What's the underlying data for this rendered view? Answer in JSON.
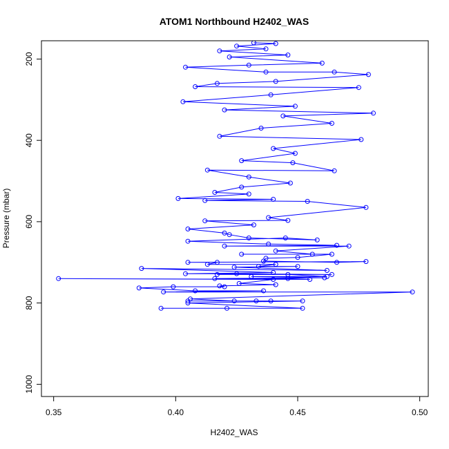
{
  "chart_data": {
    "type": "line",
    "title": "ATOM1 Northbound H2402_WAS",
    "xlabel": "H2402_WAS",
    "ylabel": "Pressure (mbar)",
    "xlim": [
      0.345,
      0.5035
    ],
    "ylim": [
      1030,
      155
    ],
    "y_reversed": true,
    "x_ticks": [
      0.35,
      0.4,
      0.45,
      0.5
    ],
    "x_tick_labels": [
      "0.35",
      "0.40",
      "0.45",
      "0.50"
    ],
    "y_ticks": [
      200,
      400,
      600,
      800,
      1000
    ],
    "y_tick_labels": [
      "200",
      "400",
      "600",
      "800",
      "1000"
    ],
    "grid": false,
    "legend": "none",
    "series_color": "#0000ff",
    "marker": "open-circle",
    "series": [
      {
        "points": [
          [
            0.394,
            813
          ],
          [
            0.421,
            813
          ],
          [
            0.452,
            813
          ],
          [
            0.405,
            800
          ],
          [
            0.452,
            795
          ],
          [
            0.433,
            795
          ],
          [
            0.405,
            795
          ],
          [
            0.439,
            795
          ],
          [
            0.424,
            795
          ],
          [
            0.406,
            790
          ],
          [
            0.497,
            773
          ],
          [
            0.395,
            773
          ],
          [
            0.436,
            770
          ],
          [
            0.408,
            770
          ],
          [
            0.385,
            763
          ],
          [
            0.399,
            760
          ],
          [
            0.42,
            760
          ],
          [
            0.418,
            758
          ],
          [
            0.441,
            755
          ],
          [
            0.426,
            752
          ],
          [
            0.44,
            742
          ],
          [
            0.352,
            740
          ],
          [
            0.455,
            742
          ],
          [
            0.446,
            740
          ],
          [
            0.416,
            740
          ],
          [
            0.461,
            738
          ],
          [
            0.431,
            735
          ],
          [
            0.462,
            735
          ],
          [
            0.446,
            730
          ],
          [
            0.417,
            730
          ],
          [
            0.464,
            730
          ],
          [
            0.425,
            728
          ],
          [
            0.404,
            728
          ],
          [
            0.44,
            725
          ],
          [
            0.386,
            715
          ],
          [
            0.462,
            720
          ],
          [
            0.424,
            712
          ],
          [
            0.45,
            710
          ],
          [
            0.434,
            710
          ],
          [
            0.441,
            705
          ],
          [
            0.413,
            705
          ],
          [
            0.417,
            700
          ],
          [
            0.405,
            700
          ],
          [
            0.478,
            698
          ],
          [
            0.466,
            700
          ],
          [
            0.436,
            697
          ],
          [
            0.437,
            690
          ],
          [
            0.45,
            688
          ],
          [
            0.464,
            680
          ],
          [
            0.427,
            680
          ],
          [
            0.456,
            680
          ],
          [
            0.441,
            672
          ],
          [
            0.471,
            660
          ],
          [
            0.42,
            660
          ],
          [
            0.466,
            658
          ],
          [
            0.438,
            655
          ],
          [
            0.405,
            648
          ],
          [
            0.445,
            640
          ],
          [
            0.458,
            645
          ],
          [
            0.43,
            640
          ],
          [
            0.422,
            632
          ],
          [
            0.42,
            628
          ],
          [
            0.405,
            618
          ],
          [
            0.432,
            608
          ],
          [
            0.412,
            598
          ],
          [
            0.446,
            597
          ],
          [
            0.438,
            590
          ],
          [
            0.478,
            565
          ],
          [
            0.454,
            550
          ],
          [
            0.412,
            548
          ],
          [
            0.44,
            545
          ],
          [
            0.401,
            543
          ],
          [
            0.43,
            532
          ],
          [
            0.416,
            528
          ],
          [
            0.427,
            515
          ],
          [
            0.447,
            505
          ],
          [
            0.43,
            490
          ],
          [
            0.413,
            473
          ],
          [
            0.465,
            475
          ],
          [
            0.448,
            455
          ],
          [
            0.427,
            450
          ],
          [
            0.449,
            432
          ],
          [
            0.44,
            420
          ],
          [
            0.476,
            398
          ],
          [
            0.418,
            390
          ],
          [
            0.435,
            370
          ],
          [
            0.464,
            358
          ],
          [
            0.444,
            340
          ],
          [
            0.481,
            333
          ],
          [
            0.42,
            325
          ],
          [
            0.449,
            316
          ],
          [
            0.403,
            305
          ],
          [
            0.439,
            288
          ],
          [
            0.475,
            270
          ],
          [
            0.408,
            268
          ],
          [
            0.417,
            260
          ],
          [
            0.441,
            255
          ],
          [
            0.479,
            238
          ],
          [
            0.465,
            232
          ],
          [
            0.437,
            232
          ],
          [
            0.404,
            220
          ],
          [
            0.43,
            215
          ],
          [
            0.46,
            210
          ],
          [
            0.422,
            195
          ],
          [
            0.446,
            190
          ],
          [
            0.418,
            180
          ],
          [
            0.437,
            175
          ],
          [
            0.425,
            168
          ],
          [
            0.441,
            162
          ],
          [
            0.432,
            160
          ]
        ]
      }
    ]
  }
}
